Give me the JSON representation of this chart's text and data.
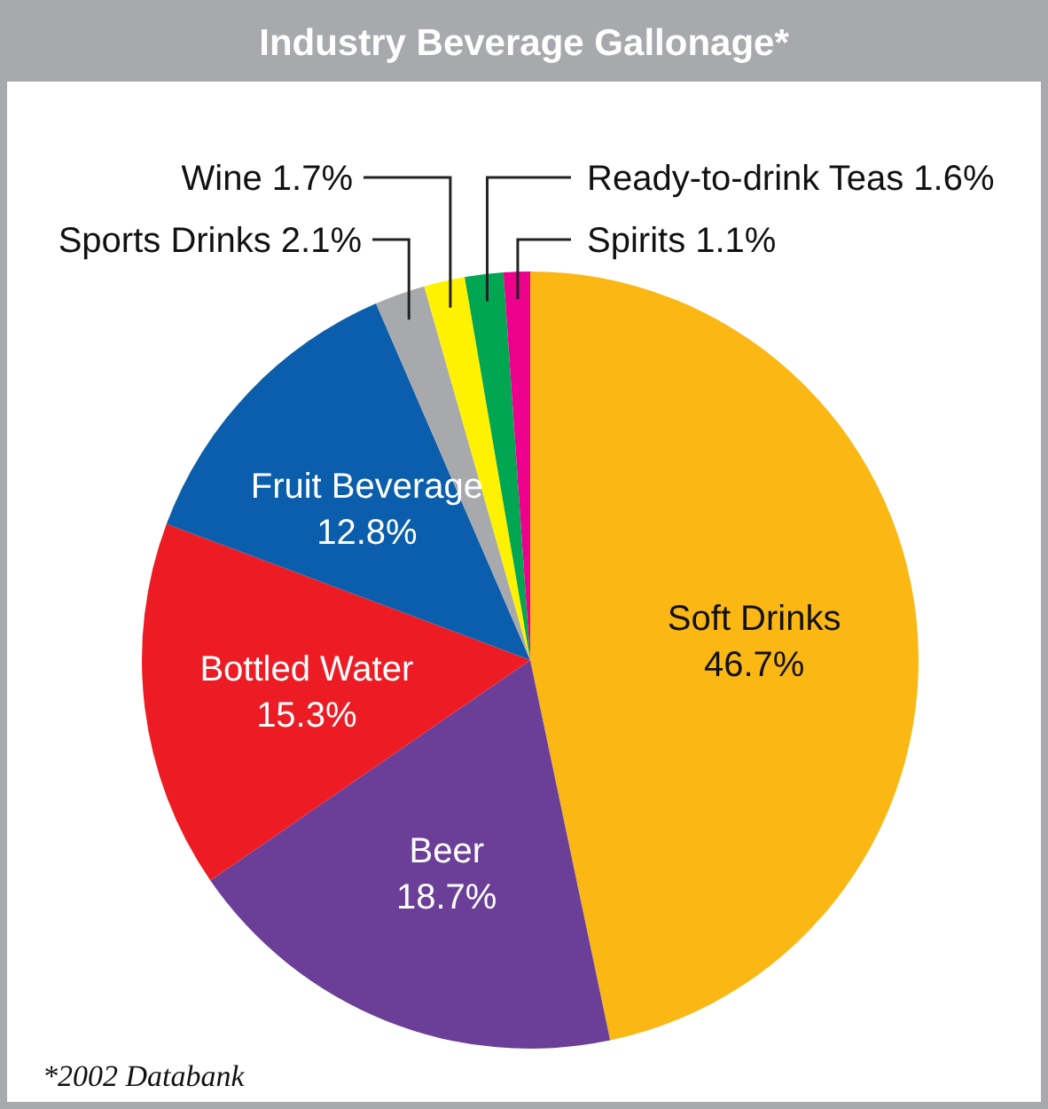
{
  "chart_data": {
    "type": "pie",
    "title": "Industry Beverage Gallonage*",
    "categories": [
      "Soft Drinks",
      "Beer",
      "Bottled Water",
      "Fruit Beverage",
      "Sports Drinks",
      "Wine",
      "Ready-to-drink Teas",
      "Spirits"
    ],
    "values": [
      46.7,
      18.7,
      15.3,
      12.8,
      2.1,
      1.7,
      1.6,
      1.1
    ],
    "value_labels": [
      "46.7%",
      "18.7%",
      "15.3%",
      "12.8%",
      "2.1%",
      "1.7%",
      "1.6%",
      "1.1%"
    ],
    "colors": [
      "#fbb714",
      "#6b3f98",
      "#ed1c24",
      "#0a5eab",
      "#a7a9ac",
      "#fff200",
      "#00a651",
      "#ec008c"
    ],
    "annotations": [
      "*2002 Databank"
    ]
  }
}
